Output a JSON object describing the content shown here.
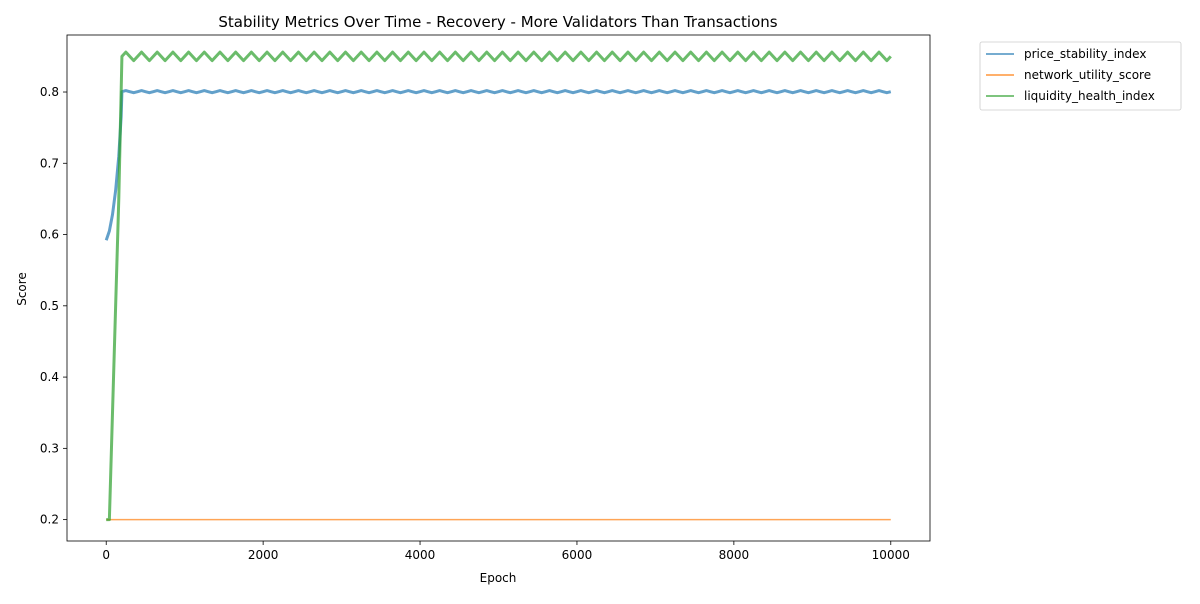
{
  "chart_data": {
    "type": "line",
    "title": "Stability Metrics Over Time - Recovery - More Validators Than Transactions",
    "xlabel": "Epoch",
    "ylabel": "Score",
    "xlim": [
      -500,
      10500
    ],
    "ylim": [
      0.17,
      0.88
    ],
    "xticks": [
      0,
      2000,
      4000,
      6000,
      8000,
      10000
    ],
    "yticks": [
      0.2,
      0.3,
      0.4,
      0.5,
      0.6,
      0.7,
      0.8
    ],
    "grid": false,
    "legend_position": "outside-top-right",
    "series": [
      {
        "name": "price_stability_index",
        "color": "#1f77b4",
        "opacity": 0.7,
        "points": [
          [
            0,
            0.592
          ],
          [
            40,
            0.605
          ],
          [
            80,
            0.628
          ],
          [
            120,
            0.662
          ],
          [
            160,
            0.71
          ],
          [
            190,
            0.765
          ],
          [
            200,
            0.8
          ],
          [
            10000,
            0.8
          ]
        ],
        "oscillation": {
          "from": 200,
          "to": 10000,
          "period": 200,
          "low": 0.799,
          "high": 0.802
        }
      },
      {
        "name": "network_utility_score",
        "color": "#ff7f0e",
        "opacity": 0.7,
        "points": [
          [
            0,
            0.2
          ],
          [
            10000,
            0.2
          ]
        ]
      },
      {
        "name": "liquidity_health_index",
        "color": "#2ca02c",
        "opacity": 0.7,
        "points": [
          [
            0,
            0.2
          ],
          [
            40,
            0.2
          ],
          [
            80,
            0.35
          ],
          [
            120,
            0.5
          ],
          [
            160,
            0.65
          ],
          [
            180,
            0.75
          ],
          [
            200,
            0.85
          ],
          [
            10000,
            0.85
          ]
        ],
        "oscillation": {
          "from": 200,
          "to": 10000,
          "period": 200,
          "low": 0.844,
          "high": 0.856
        }
      }
    ]
  }
}
